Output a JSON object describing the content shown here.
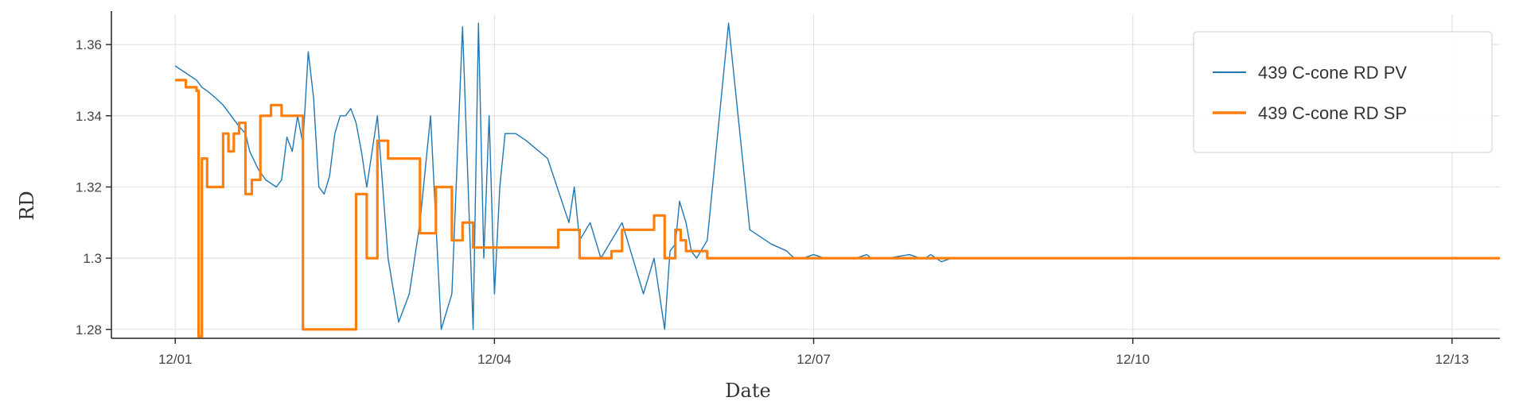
{
  "chart_data": {
    "type": "line",
    "title": "",
    "xlabel": "Date",
    "ylabel": "RD",
    "x_tick_labels": [
      "12/01",
      "12/04",
      "12/07",
      "12/10",
      "12/13"
    ],
    "x_tick_values": [
      0,
      3,
      6,
      9,
      12
    ],
    "x_range": [
      -0.6,
      12.45
    ],
    "y_tick_labels": [
      "1.36",
      "1.34",
      "1.32",
      "1.3",
      "1.28"
    ],
    "y_tick_values": [
      1.36,
      1.34,
      1.32,
      1.3,
      1.28
    ],
    "ylim": [
      1.2775,
      1.3685
    ],
    "grid": true,
    "legend_position": "top-right",
    "series": [
      {
        "name": "439 C-cone RD PV",
        "color": "#1f77b4",
        "x": [
          0.0,
          0.1,
          0.2,
          0.25,
          0.3,
          0.38,
          0.45,
          0.5,
          0.55,
          0.6,
          0.66,
          0.7,
          0.78,
          0.85,
          0.9,
          0.95,
          1.0,
          1.05,
          1.1,
          1.15,
          1.2,
          1.25,
          1.3,
          1.35,
          1.4,
          1.45,
          1.5,
          1.55,
          1.6,
          1.65,
          1.7,
          1.75,
          1.8,
          1.9,
          2.0,
          2.1,
          2.2,
          2.3,
          2.4,
          2.5,
          2.6,
          2.7,
          2.8,
          2.85,
          2.9,
          2.95,
          3.0,
          3.05,
          3.1,
          3.2,
          3.3,
          3.5,
          3.7,
          3.75,
          3.8,
          3.9,
          4.0,
          4.2,
          4.4,
          4.5,
          4.6,
          4.65,
          4.7,
          4.72,
          4.74,
          4.76,
          4.8,
          4.85,
          4.9,
          5.0,
          5.2,
          5.4,
          5.6,
          5.75,
          5.78,
          5.82,
          5.9,
          6.0,
          6.1,
          6.2,
          6.4,
          6.5,
          6.54,
          6.58,
          6.7,
          6.9,
          7.0,
          7.02,
          7.05,
          7.1,
          7.2,
          7.3,
          7.35,
          7.4,
          7.5,
          7.6,
          7.7,
          7.8,
          7.9,
          8.0,
          8.1,
          8.2,
          8.3,
          8.35,
          8.4,
          8.5,
          8.6,
          8.7,
          8.8,
          8.9,
          9.0,
          9.5,
          10.0,
          10.5,
          10.7,
          10.75,
          10.8,
          10.9,
          11.0,
          11.05,
          11.1,
          11.2,
          11.3,
          11.4,
          11.5,
          11.6,
          11.7,
          11.75,
          11.8,
          11.9,
          12.0,
          12.3,
          12.55,
          12.75,
          13.0
        ],
        "y": [
          1.354,
          1.352,
          1.35,
          1.348,
          1.347,
          1.345,
          1.343,
          1.341,
          1.339,
          1.337,
          1.335,
          1.33,
          1.325,
          1.322,
          1.321,
          1.32,
          1.322,
          1.334,
          1.33,
          1.34,
          1.332,
          1.358,
          1.345,
          1.32,
          1.318,
          1.323,
          1.335,
          1.34,
          1.34,
          1.342,
          1.338,
          1.33,
          1.32,
          1.34,
          1.3,
          1.282,
          1.29,
          1.31,
          1.34,
          1.28,
          1.29,
          1.365,
          1.28,
          1.366,
          1.3,
          1.34,
          1.29,
          1.32,
          1.335,
          1.335,
          1.333,
          1.328,
          1.31,
          1.32,
          1.305,
          1.31,
          1.3,
          1.31,
          1.29,
          1.3,
          1.28,
          1.302,
          1.304,
          1.31,
          1.316,
          1.314,
          1.31,
          1.302,
          1.3,
          1.305,
          1.366,
          1.308,
          1.304,
          1.302,
          1.301,
          1.3,
          1.3,
          1.301,
          1.3,
          1.3,
          1.3,
          1.301,
          1.3,
          1.3,
          1.3,
          1.301,
          1.3,
          1.3,
          1.3,
          1.301,
          1.299,
          1.3,
          1.3,
          1.3,
          1.3,
          1.3,
          1.3,
          1.3,
          1.3,
          1.3,
          1.3,
          1.3,
          1.3,
          1.3,
          1.3,
          1.3,
          1.3,
          1.3,
          1.3,
          1.3,
          1.3,
          1.3,
          1.3,
          1.3,
          1.3,
          1.3,
          1.3,
          1.3,
          1.3,
          1.3,
          1.3,
          1.3,
          1.3,
          1.3,
          1.3,
          1.3,
          1.3,
          1.3,
          1.3,
          1.3,
          1.3,
          1.3,
          1.3,
          1.3,
          1.3
        ]
      },
      {
        "name": "439 C-cone RD SP",
        "color": "#ff7f0e",
        "x": [
          0.0,
          0.1,
          0.2,
          0.22,
          0.25,
          0.3,
          0.38,
          0.45,
          0.5,
          0.55,
          0.6,
          0.66,
          0.72,
          0.8,
          0.9,
          1.0,
          1.1,
          1.2,
          1.35,
          1.45,
          1.55,
          1.7,
          1.8,
          1.9,
          2.0,
          2.1,
          2.2,
          2.3,
          2.45,
          2.6,
          2.7,
          2.8,
          2.9,
          3.0,
          3.2,
          3.4,
          3.5,
          3.55,
          3.6,
          3.8,
          4.0,
          4.1,
          4.2,
          4.3,
          4.5,
          4.6,
          4.7,
          4.75,
          4.8,
          5.0,
          5.2,
          5.4,
          5.55,
          5.75,
          5.85,
          5.95,
          6.1,
          6.3,
          6.45,
          6.6,
          6.9,
          7.0,
          7.15,
          7.3,
          7.45,
          7.6,
          7.7,
          7.8,
          7.9,
          8.0,
          8.1,
          8.25,
          8.4,
          8.55,
          8.65,
          8.8,
          9.0,
          9.3,
          9.55,
          9.75,
          10.0,
          10.2,
          10.4,
          10.6,
          10.8,
          11.0,
          11.2,
          11.4,
          11.6,
          11.8,
          12.0,
          12.3,
          12.5,
          12.7,
          13.0
        ],
        "y": [
          1.35,
          1.348,
          1.347,
          1.278,
          1.328,
          1.32,
          1.32,
          1.335,
          1.33,
          1.335,
          1.338,
          1.318,
          1.322,
          1.34,
          1.343,
          1.34,
          1.34,
          1.28,
          1.28,
          1.28,
          1.28,
          1.318,
          1.3,
          1.333,
          1.328,
          1.328,
          1.328,
          1.307,
          1.32,
          1.305,
          1.31,
          1.303,
          1.303,
          1.303,
          1.303,
          1.303,
          1.303,
          1.303,
          1.308,
          1.3,
          1.3,
          1.302,
          1.308,
          1.308,
          1.312,
          1.3,
          1.308,
          1.305,
          1.302,
          1.3,
          1.3,
          1.3,
          1.3,
          1.3,
          1.3,
          1.3,
          1.3,
          1.3,
          1.3,
          1.3,
          1.3,
          1.3,
          1.3,
          1.3,
          1.3,
          1.3,
          1.3,
          1.3,
          1.3,
          1.3,
          1.3,
          1.3,
          1.3,
          1.3,
          1.3,
          1.3,
          1.3,
          1.3,
          1.3,
          1.3,
          1.3,
          1.3,
          1.3,
          1.3,
          1.3,
          1.3,
          1.3,
          1.3,
          1.3,
          1.3,
          1.3,
          1.3,
          1.3,
          1.3,
          1.3
        ]
      }
    ]
  }
}
